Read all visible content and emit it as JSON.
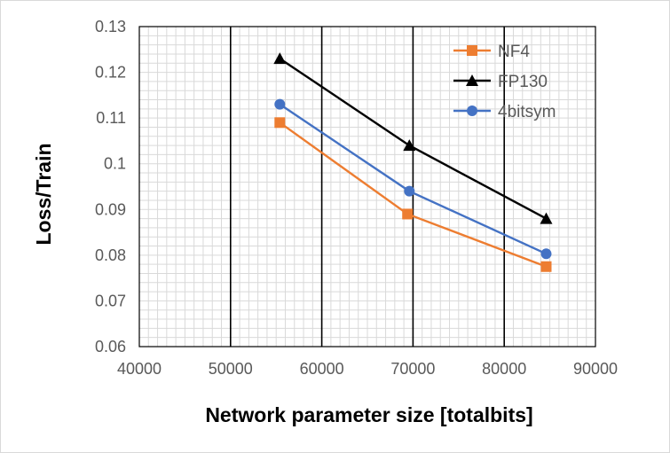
{
  "chart_data": {
    "type": "scatter",
    "xlabel": "Network parameter size [totalbits]",
    "ylabel": "Loss/Train",
    "xlim": [
      40000,
      90000
    ],
    "ylim": [
      0.06,
      0.13
    ],
    "x_ticks": [
      "40000",
      "50000",
      "60000",
      "70000",
      "80000",
      "90000"
    ],
    "y_ticks": [
      "0.06",
      "0.07",
      "0.08",
      "0.09",
      "0.1",
      "0.11",
      "0.12",
      "0.13"
    ],
    "grid": true,
    "legend_position": "top-right",
    "series": [
      {
        "name": "NF4",
        "color": "#ED7D31",
        "marker": "square",
        "x": [
          55400,
          69400,
          84600
        ],
        "y": [
          0.109,
          0.089,
          0.0775
        ]
      },
      {
        "name": "FP130",
        "color": "#000000",
        "marker": "triangle",
        "x": [
          55400,
          69600,
          84600
        ],
        "y": [
          0.123,
          0.104,
          0.088
        ]
      },
      {
        "name": "4bitsym",
        "color": "#4472C4",
        "marker": "circle",
        "x": [
          55400,
          69600,
          84600
        ],
        "y": [
          0.113,
          0.094,
          0.0803
        ]
      }
    ]
  }
}
